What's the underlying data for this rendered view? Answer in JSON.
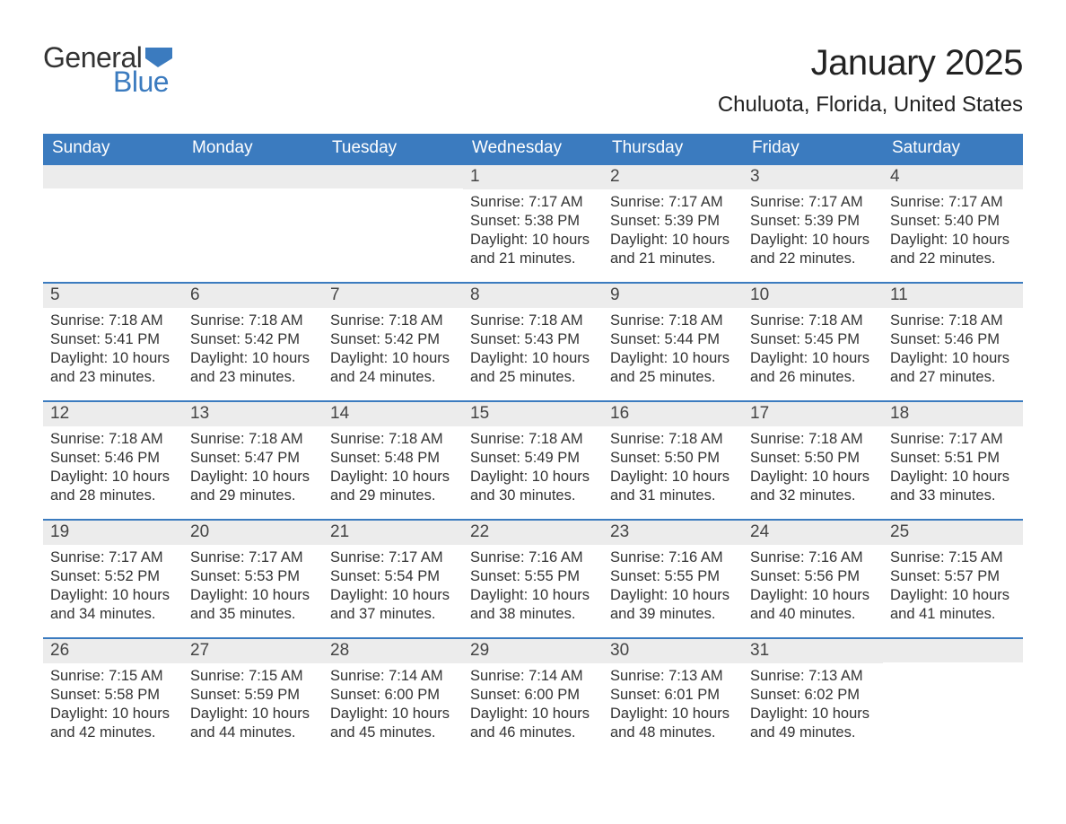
{
  "logo": {
    "general": "General",
    "blue": "Blue",
    "flag_color": "#3b7bbf"
  },
  "title": "January 2025",
  "location": "Chuluota, Florida, United States",
  "colors": {
    "header_bg": "#3b7bbf",
    "header_text": "#ffffff",
    "daynum_bg": "#ececec",
    "row_border": "#3b7bbf",
    "text": "#333333",
    "background": "#ffffff"
  },
  "fonts": {
    "title_size_pt": 30,
    "location_size_pt": 18,
    "weekday_size_pt": 14,
    "daynum_size_pt": 14,
    "body_size_pt": 12
  },
  "weekdays": [
    "Sunday",
    "Monday",
    "Tuesday",
    "Wednesday",
    "Thursday",
    "Friday",
    "Saturday"
  ],
  "labels": {
    "sunrise": "Sunrise:",
    "sunset": "Sunset:",
    "daylight": "Daylight:"
  },
  "weeks": [
    [
      {
        "day": "",
        "empty": true
      },
      {
        "day": "",
        "empty": true
      },
      {
        "day": "",
        "empty": true
      },
      {
        "day": "1",
        "sunrise": "7:17 AM",
        "sunset": "5:38 PM",
        "daylight": "10 hours and 21 minutes."
      },
      {
        "day": "2",
        "sunrise": "7:17 AM",
        "sunset": "5:39 PM",
        "daylight": "10 hours and 21 minutes."
      },
      {
        "day": "3",
        "sunrise": "7:17 AM",
        "sunset": "5:39 PM",
        "daylight": "10 hours and 22 minutes."
      },
      {
        "day": "4",
        "sunrise": "7:17 AM",
        "sunset": "5:40 PM",
        "daylight": "10 hours and 22 minutes."
      }
    ],
    [
      {
        "day": "5",
        "sunrise": "7:18 AM",
        "sunset": "5:41 PM",
        "daylight": "10 hours and 23 minutes."
      },
      {
        "day": "6",
        "sunrise": "7:18 AM",
        "sunset": "5:42 PM",
        "daylight": "10 hours and 23 minutes."
      },
      {
        "day": "7",
        "sunrise": "7:18 AM",
        "sunset": "5:42 PM",
        "daylight": "10 hours and 24 minutes."
      },
      {
        "day": "8",
        "sunrise": "7:18 AM",
        "sunset": "5:43 PM",
        "daylight": "10 hours and 25 minutes."
      },
      {
        "day": "9",
        "sunrise": "7:18 AM",
        "sunset": "5:44 PM",
        "daylight": "10 hours and 25 minutes."
      },
      {
        "day": "10",
        "sunrise": "7:18 AM",
        "sunset": "5:45 PM",
        "daylight": "10 hours and 26 minutes."
      },
      {
        "day": "11",
        "sunrise": "7:18 AM",
        "sunset": "5:46 PM",
        "daylight": "10 hours and 27 minutes."
      }
    ],
    [
      {
        "day": "12",
        "sunrise": "7:18 AM",
        "sunset": "5:46 PM",
        "daylight": "10 hours and 28 minutes."
      },
      {
        "day": "13",
        "sunrise": "7:18 AM",
        "sunset": "5:47 PM",
        "daylight": "10 hours and 29 minutes."
      },
      {
        "day": "14",
        "sunrise": "7:18 AM",
        "sunset": "5:48 PM",
        "daylight": "10 hours and 29 minutes."
      },
      {
        "day": "15",
        "sunrise": "7:18 AM",
        "sunset": "5:49 PM",
        "daylight": "10 hours and 30 minutes."
      },
      {
        "day": "16",
        "sunrise": "7:18 AM",
        "sunset": "5:50 PM",
        "daylight": "10 hours and 31 minutes."
      },
      {
        "day": "17",
        "sunrise": "7:18 AM",
        "sunset": "5:50 PM",
        "daylight": "10 hours and 32 minutes."
      },
      {
        "day": "18",
        "sunrise": "7:17 AM",
        "sunset": "5:51 PM",
        "daylight": "10 hours and 33 minutes."
      }
    ],
    [
      {
        "day": "19",
        "sunrise": "7:17 AM",
        "sunset": "5:52 PM",
        "daylight": "10 hours and 34 minutes."
      },
      {
        "day": "20",
        "sunrise": "7:17 AM",
        "sunset": "5:53 PM",
        "daylight": "10 hours and 35 minutes."
      },
      {
        "day": "21",
        "sunrise": "7:17 AM",
        "sunset": "5:54 PM",
        "daylight": "10 hours and 37 minutes."
      },
      {
        "day": "22",
        "sunrise": "7:16 AM",
        "sunset": "5:55 PM",
        "daylight": "10 hours and 38 minutes."
      },
      {
        "day": "23",
        "sunrise": "7:16 AM",
        "sunset": "5:55 PM",
        "daylight": "10 hours and 39 minutes."
      },
      {
        "day": "24",
        "sunrise": "7:16 AM",
        "sunset": "5:56 PM",
        "daylight": "10 hours and 40 minutes."
      },
      {
        "day": "25",
        "sunrise": "7:15 AM",
        "sunset": "5:57 PM",
        "daylight": "10 hours and 41 minutes."
      }
    ],
    [
      {
        "day": "26",
        "sunrise": "7:15 AM",
        "sunset": "5:58 PM",
        "daylight": "10 hours and 42 minutes."
      },
      {
        "day": "27",
        "sunrise": "7:15 AM",
        "sunset": "5:59 PM",
        "daylight": "10 hours and 44 minutes."
      },
      {
        "day": "28",
        "sunrise": "7:14 AM",
        "sunset": "6:00 PM",
        "daylight": "10 hours and 45 minutes."
      },
      {
        "day": "29",
        "sunrise": "7:14 AM",
        "sunset": "6:00 PM",
        "daylight": "10 hours and 46 minutes."
      },
      {
        "day": "30",
        "sunrise": "7:13 AM",
        "sunset": "6:01 PM",
        "daylight": "10 hours and 48 minutes."
      },
      {
        "day": "31",
        "sunrise": "7:13 AM",
        "sunset": "6:02 PM",
        "daylight": "10 hours and 49 minutes."
      },
      {
        "day": "",
        "empty": true
      }
    ]
  ]
}
